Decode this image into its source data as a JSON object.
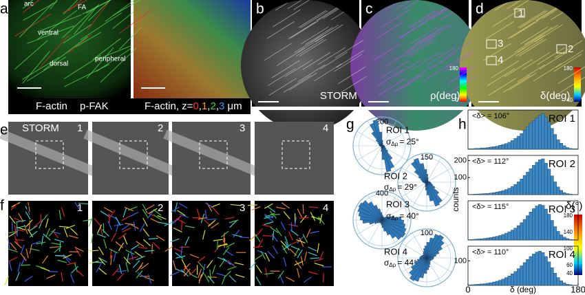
{
  "panels": {
    "a": {
      "label": "a",
      "annotations": [
        "arc",
        "FA",
        "ventral",
        "dorsal",
        "peripheral"
      ],
      "legend": [
        {
          "text": "F-actin",
          "color": "#2fd12f"
        },
        {
          "text": "p-FAK",
          "color": "#e41a1a"
        }
      ],
      "caption_parts": [
        {
          "text": "F-actin, z=",
          "color": "#ffffff"
        },
        {
          "text": "0",
          "color": "#ff3030"
        },
        {
          "text": ",",
          "color": "#ffffff"
        },
        {
          "text": "1",
          "color": "#ff9a1a"
        },
        {
          "text": ",",
          "color": "#ffffff"
        },
        {
          "text": "2",
          "color": "#33dd33"
        },
        {
          "text": ",",
          "color": "#ffffff"
        },
        {
          "text": "3",
          "color": "#3399ff"
        },
        {
          "text": " μm",
          "color": "#ffffff"
        }
      ]
    },
    "b": {
      "label": "b",
      "caption": "STORM"
    },
    "c": {
      "label": "c",
      "caption": "ρ(deg)",
      "colorbar": [
        180,
        0
      ]
    },
    "d": {
      "label": "d",
      "caption": "δ(deg)",
      "colorbar": [
        180,
        40
      ],
      "rois": [
        "1",
        "2",
        "3",
        "4"
      ]
    },
    "e": {
      "label": "e",
      "caption": "STORM",
      "tiles": [
        "1",
        "2",
        "3",
        "4"
      ]
    },
    "f": {
      "label": "f",
      "caption": "δ(deg)",
      "tiles": [
        "1",
        "2",
        "3",
        "4"
      ],
      "colorbar_title": "δ(°)",
      "colorbar": [
        180,
        140,
        100,
        60,
        40
      ]
    },
    "g": {
      "label": "g",
      "roses": [
        {
          "name": "ROI 1",
          "sigma_symbol": "σ",
          "sigma_sub": "Δρ",
          "sigma_value": "= 25°",
          "rlim": [
            0,
            250
          ],
          "rticks": [
            200
          ],
          "values": [
            20,
            15,
            12,
            10,
            10,
            12,
            15,
            25,
            50,
            120,
            230,
            210,
            140,
            70,
            40,
            30,
            25,
            22
          ]
        },
        {
          "name": "ROI 2",
          "sigma_symbol": "σ",
          "sigma_sub": "Δρ",
          "sigma_value": "= 29°",
          "rlim": [
            0,
            180
          ],
          "rticks": [
            150
          ],
          "values": [
            20,
            15,
            12,
            12,
            12,
            15,
            20,
            30,
            50,
            80,
            120,
            160,
            150,
            100,
            60,
            40,
            30,
            25
          ]
        },
        {
          "name": "ROI 3",
          "sigma_symbol": "σ",
          "sigma_sub": "Δρ",
          "sigma_value": "= 40°",
          "rlim": [
            0,
            450
          ],
          "rticks": [
            400
          ],
          "values": [
            300,
            200,
            120,
            80,
            60,
            50,
            50,
            60,
            80,
            120,
            180,
            250,
            330,
            400,
            420,
            400,
            370,
            340
          ]
        },
        {
          "name": "ROI 4",
          "sigma_symbol": "σ",
          "sigma_sub": "Δρ",
          "sigma_value": "= 44°",
          "rlim": [
            0,
            120
          ],
          "rticks": [
            100
          ],
          "values": [
            30,
            40,
            55,
            75,
            95,
            110,
            105,
            85,
            65,
            50,
            40,
            30,
            25,
            20,
            20,
            22,
            25,
            28
          ]
        }
      ]
    },
    "h": {
      "label": "h",
      "y_label": "counts",
      "x_label": "δ (deg)",
      "xlim": [
        0,
        180
      ],
      "xticks": [
        0,
        180
      ],
      "bins": [
        0,
        5,
        10,
        15,
        20,
        25,
        30,
        35,
        40,
        45,
        50,
        55,
        60,
        65,
        70,
        75,
        80,
        85,
        90,
        95,
        100,
        105,
        110,
        115,
        120,
        125,
        130,
        135,
        140,
        145,
        150,
        155,
        160,
        165,
        170,
        175,
        180
      ],
      "histograms": [
        {
          "name": "ROI 1",
          "mean_label": "<δ> = 106°",
          "ylim": [
            0,
            90
          ],
          "yticks": [],
          "values": [
            1,
            1,
            2,
            2,
            3,
            3,
            4,
            5,
            6,
            7,
            9,
            11,
            13,
            16,
            20,
            25,
            30,
            36,
            44,
            52,
            60,
            66,
            72,
            78,
            82,
            74,
            62,
            48,
            34,
            22,
            14,
            8,
            4,
            2,
            1,
            1
          ]
        },
        {
          "name": "ROI 2",
          "mean_label": "<δ> = 112°",
          "ylim": [
            0,
            230
          ],
          "yticks": [
            100,
            200
          ],
          "values": [
            1,
            2,
            3,
            4,
            5,
            6,
            7,
            9,
            12,
            15,
            19,
            24,
            30,
            38,
            48,
            60,
            75,
            92,
            112,
            132,
            152,
            172,
            190,
            205,
            210,
            185,
            150,
            110,
            75,
            45,
            25,
            12,
            6,
            3,
            1,
            1
          ]
        },
        {
          "name": "ROI 3",
          "mean_label": "<δ> = 115°",
          "ylim": [
            0,
            190
          ],
          "yticks": [],
          "values": [
            2,
            3,
            4,
            5,
            6,
            8,
            10,
            12,
            15,
            18,
            22,
            27,
            33,
            40,
            48,
            58,
            70,
            84,
            100,
            118,
            136,
            152,
            165,
            172,
            168,
            150,
            125,
            95,
            65,
            42,
            25,
            14,
            7,
            3,
            2,
            1
          ]
        },
        {
          "name": "ROI 4",
          "mean_label": "<δ> = 110°",
          "ylim": [
            0,
            160
          ],
          "yticks": [
            100
          ],
          "values": [
            2,
            3,
            4,
            5,
            6,
            7,
            9,
            11,
            14,
            17,
            21,
            26,
            32,
            39,
            47,
            57,
            68,
            80,
            93,
            106,
            118,
            128,
            136,
            140,
            134,
            118,
            96,
            72,
            50,
            32,
            19,
            10,
            5,
            3,
            1,
            1
          ]
        }
      ]
    }
  }
}
